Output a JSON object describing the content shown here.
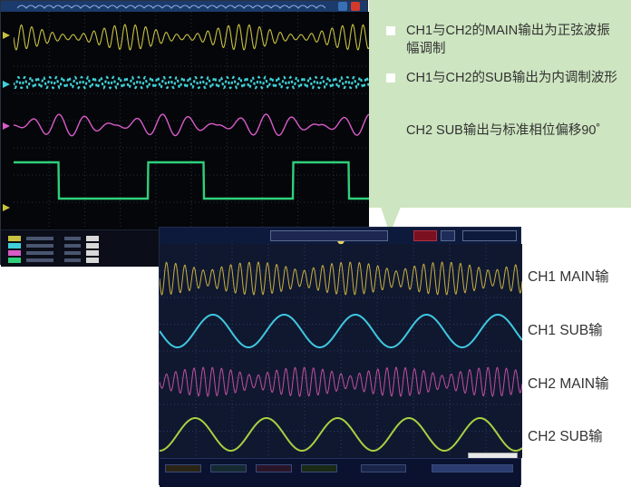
{
  "callout": {
    "note1": "CH1与CH2的MAIN输出为正弦波振幅调制",
    "note2": "CH1与CH2的SUB输出为内调制波形",
    "note3": "CH2 SUB输出与标准相位偏移90˚"
  },
  "labels": {
    "ch1_main": "CH1 MAIN输",
    "ch1_sub": "CH1 SUB输",
    "ch2_main": "CH2 MAIN输",
    "ch2_sub": "CH2 SUB输"
  },
  "colors": {
    "ch1": "#c8c240",
    "ch2": "#3fd2d8",
    "ch3": "#d85cc8",
    "ch4": "#2fd07a",
    "callout_bg": "#cde5c0"
  }
}
